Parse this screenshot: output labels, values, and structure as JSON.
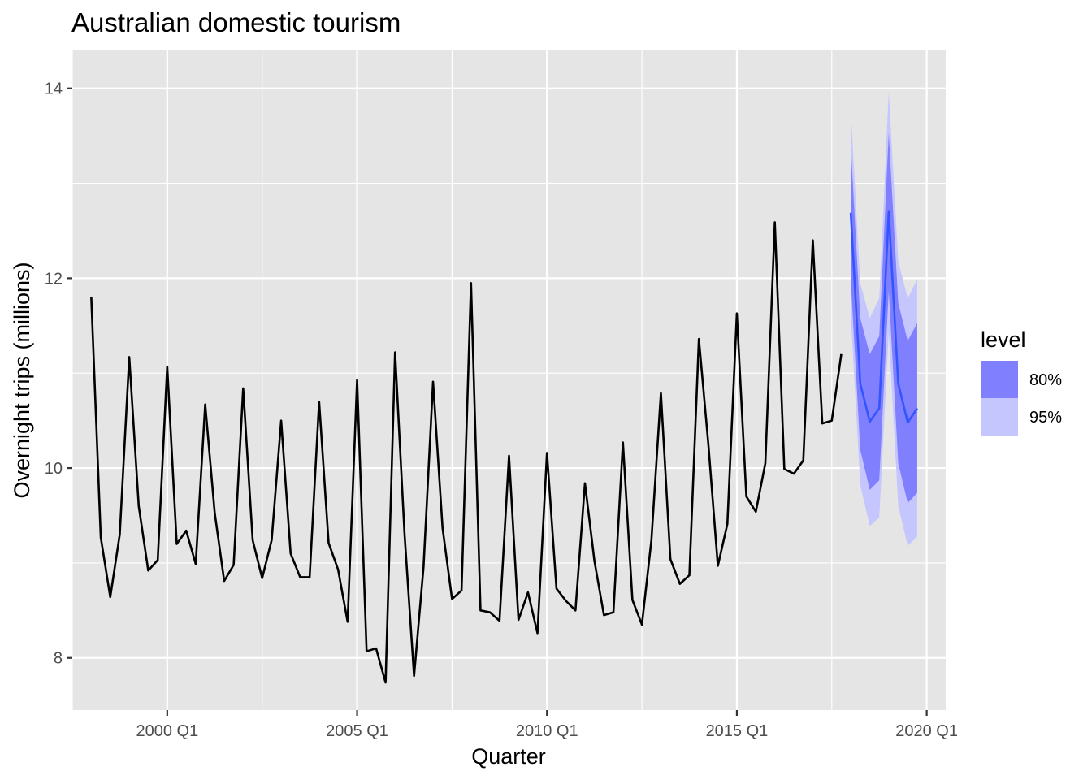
{
  "chart_data": {
    "type": "line",
    "title": "Australian domestic tourism",
    "xlabel": "Quarter",
    "ylabel": "Overnight trips (millions)",
    "x_start": "1998 Q1",
    "xlim": [
      "1997 Q3",
      "2020 Q3"
    ],
    "ylim": [
      7.45,
      14.4
    ],
    "x_ticks": [
      "2000 Q1",
      "2005 Q1",
      "2010 Q1",
      "2015 Q1",
      "2020 Q1"
    ],
    "y_ticks": [
      8,
      10,
      12,
      14
    ],
    "grid": true,
    "legend": {
      "title": "level",
      "position": "right",
      "items": [
        {
          "label": "80%",
          "color": "#8080ff"
        },
        {
          "label": "95%",
          "color": "#c6c6ff"
        }
      ]
    },
    "colors": {
      "panel": "#e5e5e5",
      "grid_major": "#ffffff",
      "observed": "#000000",
      "forecast": "#3355ff",
      "interval_80": "#8080ff",
      "interval_95": "#c6c6ff"
    },
    "series": [
      {
        "name": "observed",
        "start": "1998 Q1",
        "values": [
          11.8,
          9.27,
          8.64,
          9.3,
          11.17,
          9.6,
          8.92,
          9.03,
          11.07,
          9.2,
          9.34,
          8.99,
          10.67,
          9.53,
          8.81,
          8.98,
          10.84,
          9.24,
          8.84,
          9.24,
          10.5,
          9.1,
          8.85,
          8.85,
          10.7,
          9.21,
          8.93,
          8.38,
          10.93,
          8.07,
          8.1,
          7.74,
          11.22,
          9.3,
          7.81,
          8.96,
          10.91,
          9.37,
          8.62,
          8.71,
          11.95,
          8.5,
          8.48,
          8.39,
          10.13,
          8.4,
          8.69,
          8.26,
          10.16,
          8.73,
          8.6,
          8.5,
          9.84,
          9.02,
          8.45,
          8.48,
          10.27,
          8.61,
          8.35,
          9.24,
          10.79,
          9.04,
          8.78,
          8.87,
          11.36,
          10.25,
          8.97,
          9.41,
          11.63,
          9.7,
          9.54,
          10.05,
          12.59,
          9.99,
          9.94,
          10.08,
          12.4,
          10.47,
          10.5,
          11.2
        ]
      },
      {
        "name": "forecast",
        "start": "2018 Q1",
        "mean": [
          12.69,
          10.89,
          10.49,
          10.63,
          12.7,
          10.89,
          10.48,
          10.63
        ],
        "lo80": [
          11.98,
          10.19,
          9.77,
          9.87,
          11.87,
          10.05,
          9.63,
          9.74
        ],
        "hi80": [
          13.4,
          11.58,
          11.2,
          11.39,
          13.53,
          11.74,
          11.34,
          11.53
        ],
        "lo95": [
          11.61,
          9.82,
          9.39,
          9.48,
          11.43,
          9.6,
          9.18,
          9.28
        ],
        "hi95": [
          13.78,
          11.95,
          11.58,
          11.79,
          13.97,
          12.18,
          11.79,
          11.99
        ]
      }
    ]
  }
}
